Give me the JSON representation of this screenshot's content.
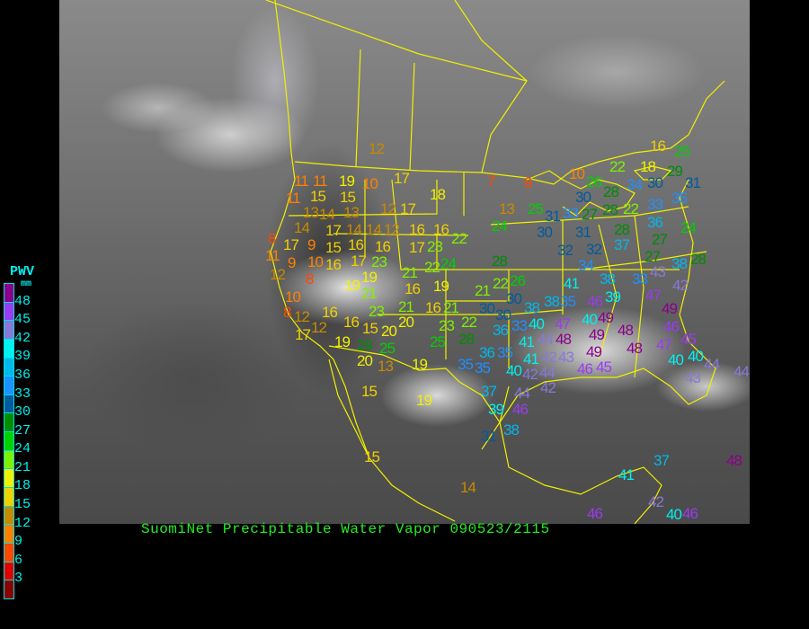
{
  "caption": "SuomiNet Precipitable Water Vapor 090523/2115",
  "legend": {
    "title": "PWV",
    "unit": "mm",
    "labels": [
      "48",
      "45",
      "42",
      "39",
      "36",
      "33",
      "30",
      "27",
      "24",
      "21",
      "18",
      "15",
      "12",
      "9",
      "6",
      "3"
    ],
    "colors": [
      "#8b008b",
      "#9b3cf0",
      "#8878d8",
      "#00f0f0",
      "#00b8ec",
      "#1e90ff",
      "#005a9c",
      "#008c00",
      "#00d000",
      "#80f000",
      "#f0f000",
      "#f0d000",
      "#c88a00",
      "#ff8000",
      "#ff4800",
      "#e00000",
      "#8b0000"
    ]
  },
  "border_color": "#f0f000",
  "stations": [
    {
      "v": 12
    },
    {
      "v": 11
    },
    {
      "v": 11
    },
    {
      "v": 19
    },
    {
      "v": 10
    },
    {
      "v": 17
    },
    {
      "v": 7
    },
    {
      "v": 11
    },
    {
      "v": 15
    },
    {
      "v": 15
    },
    {
      "v": 18
    },
    {
      "v": 13
    },
    {
      "v": 14
    },
    {
      "v": 13
    },
    {
      "v": 12
    },
    {
      "v": 17
    },
    {
      "v": 14
    },
    {
      "v": 17
    },
    {
      "v": 14
    },
    {
      "v": 14
    },
    {
      "v": 12
    },
    {
      "v": 16
    },
    {
      "v": 16
    },
    {
      "v": 8
    },
    {
      "v": 17
    },
    {
      "v": 9
    },
    {
      "v": 15
    },
    {
      "v": 16
    },
    {
      "v": 16
    },
    {
      "v": 17
    },
    {
      "v": 23
    },
    {
      "v": 22
    },
    {
      "v": 11
    },
    {
      "v": 9
    },
    {
      "v": 10
    },
    {
      "v": 16
    },
    {
      "v": 17
    },
    {
      "v": 23
    },
    {
      "v": 21
    },
    {
      "v": 22
    },
    {
      "v": 24
    },
    {
      "v": 12
    },
    {
      "v": 8
    },
    {
      "v": 19
    },
    {
      "v": 19
    },
    {
      "v": 21
    },
    {
      "v": 16
    },
    {
      "v": 19
    },
    {
      "v": 10
    },
    {
      "v": 8
    },
    {
      "v": 12
    },
    {
      "v": 16
    },
    {
      "v": 23
    },
    {
      "v": 21
    },
    {
      "v": 16
    },
    {
      "v": 21
    },
    {
      "v": 30
    },
    {
      "v": 12
    },
    {
      "v": 16
    },
    {
      "v": 15
    },
    {
      "v": 20
    },
    {
      "v": 23
    },
    {
      "v": 22
    },
    {
      "v": 17
    },
    {
      "v": 29
    },
    {
      "v": 20
    },
    {
      "v": 28
    },
    {
      "v": 19
    },
    {
      "v": 25
    },
    {
      "v": 25
    },
    {
      "v": 20
    },
    {
      "v": 13
    },
    {
      "v": 19
    },
    {
      "v": 36
    },
    {
      "v": 35
    },
    {
      "v": 16
    },
    {
      "v": 25
    },
    {
      "v": 22
    },
    {
      "v": 18
    },
    {
      "v": 10
    },
    {
      "v": 30
    },
    {
      "v": 29
    },
    {
      "v": 8
    },
    {
      "v": 26
    },
    {
      "v": 34
    },
    {
      "v": 31
    },
    {
      "v": 30
    },
    {
      "v": 28
    },
    {
      "v": 35
    },
    {
      "v": 25
    },
    {
      "v": 13
    },
    {
      "v": 31
    },
    {
      "v": 33
    },
    {
      "v": 27
    },
    {
      "v": 28
    },
    {
      "v": 22
    },
    {
      "v": 33
    },
    {
      "v": 24
    },
    {
      "v": 36
    },
    {
      "v": 24
    },
    {
      "v": 30
    },
    {
      "v": 31
    },
    {
      "v": 28
    },
    {
      "v": 27
    },
    {
      "v": 37
    },
    {
      "v": 32
    },
    {
      "v": 32
    },
    {
      "v": 34
    },
    {
      "v": 27
    },
    {
      "v": 28
    },
    {
      "v": 38
    },
    {
      "v": 28
    },
    {
      "v": 43
    },
    {
      "v": 38
    },
    {
      "v": 33
    },
    {
      "v": 22
    },
    {
      "v": 26
    },
    {
      "v": 41
    },
    {
      "v": 42
    },
    {
      "v": 39
    },
    {
      "v": 47
    },
    {
      "v": 21
    },
    {
      "v": 30
    },
    {
      "v": 35
    },
    {
      "v": 38
    },
    {
      "v": 46
    },
    {
      "v": 38
    },
    {
      "v": 49
    },
    {
      "v": 30
    },
    {
      "v": 33
    },
    {
      "v": 40
    },
    {
      "v": 40
    },
    {
      "v": 49
    },
    {
      "v": 47
    },
    {
      "v": 44
    },
    {
      "v": 36
    },
    {
      "v": 41
    },
    {
      "v": 48
    },
    {
      "v": 46
    },
    {
      "v": 49
    },
    {
      "v": 48
    },
    {
      "v": 45
    },
    {
      "v": 35
    },
    {
      "v": 41
    },
    {
      "v": 49
    },
    {
      "v": 48
    },
    {
      "v": 47
    },
    {
      "v": 40
    },
    {
      "v": 42
    },
    {
      "v": 43
    },
    {
      "v": 46
    },
    {
      "v": 40
    },
    {
      "v": 40
    },
    {
      "v": 44
    },
    {
      "v": 35
    },
    {
      "v": 42
    },
    {
      "v": 44
    },
    {
      "v": 45
    },
    {
      "v": 43
    },
    {
      "v": 42
    },
    {
      "v": 37
    },
    {
      "v": 44
    },
    {
      "v": 44
    },
    {
      "v": 19
    },
    {
      "v": 15
    },
    {
      "v": 39
    },
    {
      "v": 46
    },
    {
      "v": 38
    },
    {
      "v": 31
    },
    {
      "v": 15
    },
    {
      "v": 14
    },
    {
      "v": 41
    },
    {
      "v": 37
    },
    {
      "v": 42
    },
    {
      "v": 40
    },
    {
      "v": 46
    },
    {
      "v": 46
    },
    {
      "v": 48
    }
  ]
}
